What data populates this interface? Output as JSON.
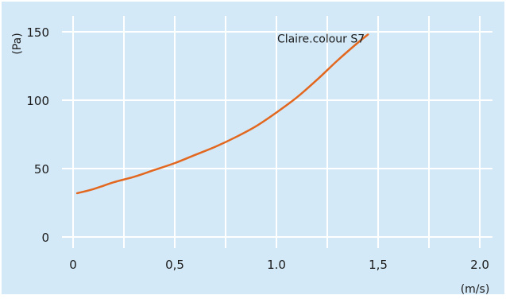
{
  "chart_data": {
    "type": "line",
    "title": "",
    "xlabel": "(m/s)",
    "ylabel": "(Pa)",
    "xlim": [
      0,
      2.0
    ],
    "ylim": [
      0,
      150
    ],
    "x_ticks": [
      0,
      0.5,
      1.0,
      1.5,
      2.0
    ],
    "x_tick_labels": [
      "0",
      "0,5",
      "1.0",
      "1,5",
      "2.0"
    ],
    "y_ticks": [
      0,
      50,
      100,
      150
    ],
    "y_tick_labels": [
      "0",
      "50",
      "100",
      "150"
    ],
    "x_minor_grid": [
      0.25,
      0.75,
      1.25,
      1.75
    ],
    "grid": true,
    "background_color": "#d4e9f7",
    "grid_color": "#ffffff",
    "series": [
      {
        "name": "Claire.colour S7",
        "color": "#e2671f",
        "x": [
          0.02,
          0.1,
          0.2,
          0.3,
          0.4,
          0.5,
          0.6,
          0.7,
          0.8,
          0.9,
          1.0,
          1.1,
          1.2,
          1.3,
          1.4,
          1.45
        ],
        "y": [
          32,
          35,
          40,
          44,
          49,
          54,
          60,
          66,
          73,
          81,
          91,
          102,
          115,
          129,
          142,
          148
        ]
      }
    ]
  }
}
